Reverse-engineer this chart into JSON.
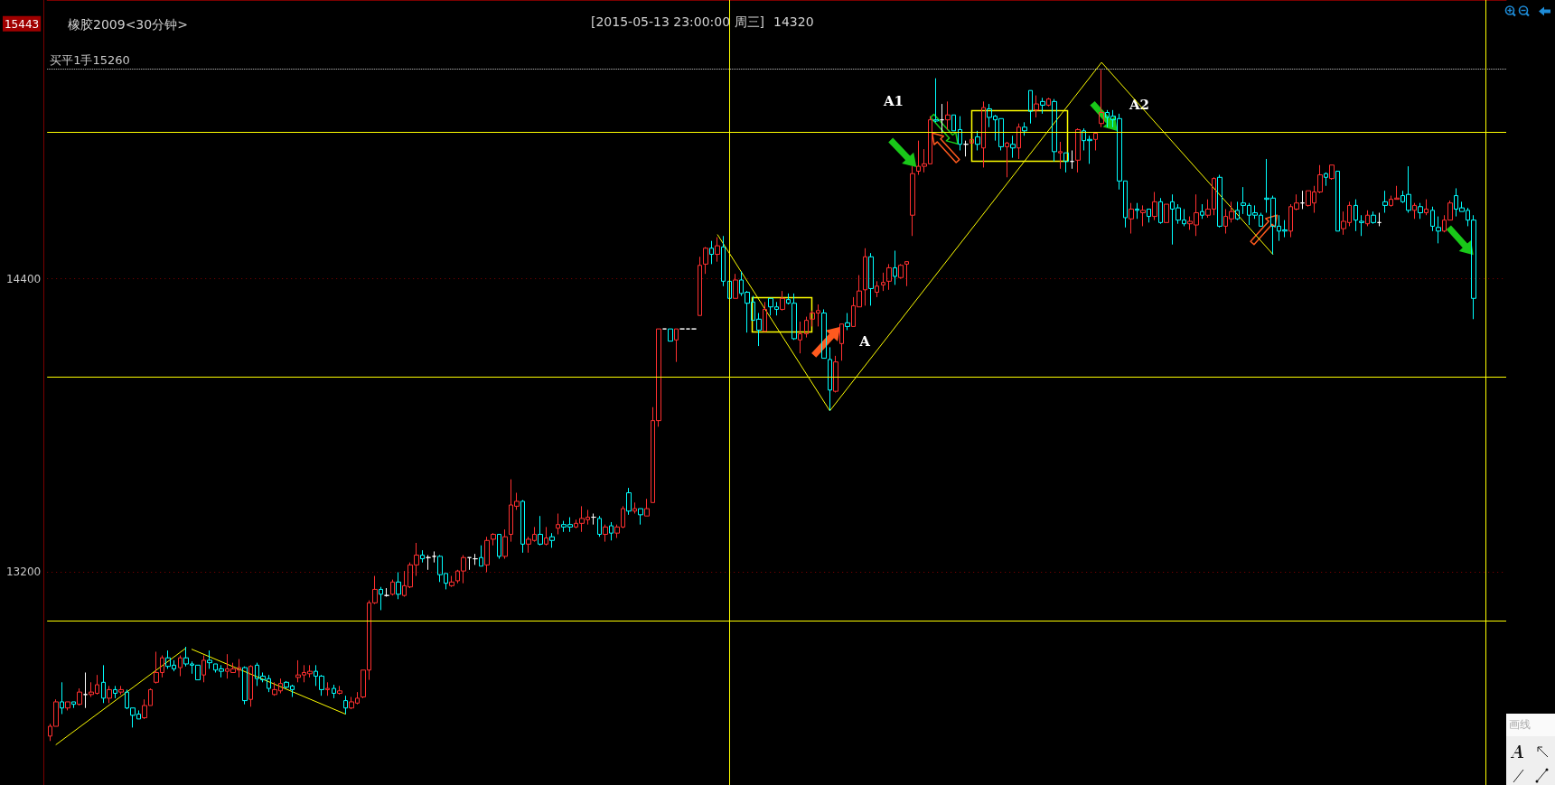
{
  "chart_data": {
    "type": "candlestick",
    "title": "橡胶2009<30分钟>",
    "annotations": [
      "[2015-05-13  23:00:00 周三]",
      "14320",
      "A1",
      "A2",
      "A",
      "画线"
    ],
    "categories": [
      null,
      null,
      null,
      null,
      null,
      null,
      null,
      null,
      null,
      null,
      null,
      null,
      null,
      null,
      null,
      null,
      null,
      null,
      null,
      null,
      null,
      null,
      null,
      null,
      null,
      null,
      null,
      null,
      null,
      null,
      null,
      null,
      null,
      null,
      null,
      null,
      null,
      null,
      null,
      null,
      null,
      null,
      null,
      null,
      null,
      null,
      null,
      null,
      null,
      null,
      null,
      null,
      null,
      null,
      null,
      null,
      null,
      null,
      null,
      null,
      null,
      null,
      null,
      null,
      null,
      null,
      null,
      null,
      null,
      null,
      null,
      null,
      null,
      null,
      null,
      null,
      null,
      null,
      null,
      null,
      null,
      null,
      null,
      null,
      null,
      null,
      null,
      null,
      null,
      null,
      null,
      null,
      null,
      null,
      null,
      null,
      null,
      null,
      null,
      null,
      null,
      null,
      null,
      null,
      null,
      null,
      null,
      null,
      null,
      null,
      null,
      null,
      null,
      null,
      null,
      null,
      null,
      null,
      null,
      null,
      null,
      null,
      null,
      null,
      null,
      null,
      null,
      null,
      null,
      null,
      null,
      null,
      null,
      null,
      null,
      null,
      null,
      null,
      null,
      null,
      null,
      null,
      null,
      null,
      null,
      null,
      null,
      null,
      null,
      null,
      null,
      null,
      null,
      null,
      null,
      null,
      null,
      null,
      null,
      null,
      null,
      null,
      null,
      null,
      null,
      null,
      null,
      null,
      null,
      null,
      null,
      null,
      null,
      null,
      null,
      null,
      null,
      null,
      null,
      null,
      null,
      null,
      null,
      null,
      null,
      null,
      null,
      null,
      null,
      null,
      null,
      null,
      null,
      null,
      null,
      null,
      null,
      null,
      null,
      null,
      null,
      null,
      null,
      null,
      null,
      null,
      null,
      null,
      null,
      null,
      null,
      null,
      null,
      null,
      null,
      null,
      null,
      null,
      null,
      null,
      null,
      null,
      null,
      null,
      null,
      null,
      null,
      null,
      null,
      null,
      null,
      null,
      null,
      null,
      null,
      null,
      null,
      null,
      null,
      null,
      null,
      null,
      null,
      null,
      null,
      null,
      null
    ],
    "ohlc": [
      [
        12530,
        12580,
        12510,
        12570
      ],
      [
        12570,
        12680,
        12570,
        12670
      ],
      [
        12670,
        12750,
        12620,
        12645
      ],
      [
        12645,
        12670,
        12635,
        12670
      ],
      [
        12670,
        12670,
        12645,
        12660
      ],
      [
        12660,
        12725,
        12655,
        12710
      ],
      [
        12700,
        12790,
        12645,
        12700
      ],
      [
        12700,
        12750,
        12690,
        12710
      ],
      [
        12705,
        12780,
        12700,
        12740
      ],
      [
        12750,
        12820,
        12665,
        12685
      ],
      [
        12685,
        12735,
        12665,
        12720
      ],
      [
        12720,
        12735,
        12685,
        12705
      ],
      [
        12710,
        12735,
        12700,
        12720
      ],
      [
        12710,
        12720,
        12640,
        12645
      ],
      [
        12645,
        12645,
        12565,
        12615
      ],
      [
        12620,
        12635,
        12600,
        12600
      ],
      [
        12605,
        12680,
        12600,
        12655
      ],
      [
        12655,
        12725,
        12655,
        12720
      ],
      [
        12750,
        12875,
        12745,
        12790
      ],
      [
        12790,
        12860,
        12770,
        12850
      ],
      [
        12850,
        12880,
        12805,
        12815
      ],
      [
        12820,
        12840,
        12795,
        12805
      ],
      [
        12810,
        12860,
        12775,
        12850
      ],
      [
        12850,
        12895,
        12815,
        12825
      ],
      [
        12825,
        12835,
        12785,
        12820
      ],
      [
        12820,
        12820,
        12760,
        12760
      ],
      [
        12780,
        12860,
        12750,
        12840
      ],
      [
        12840,
        12880,
        12805,
        12830
      ],
      [
        12825,
        12825,
        12790,
        12800
      ],
      [
        12805,
        12820,
        12770,
        12795
      ],
      [
        12795,
        12865,
        12765,
        12805
      ],
      [
        12790,
        12830,
        12790,
        12805
      ],
      [
        12800,
        12845,
        12770,
        12810
      ],
      [
        12810,
        12815,
        12660,
        12675
      ],
      [
        12680,
        12820,
        12650,
        12815
      ],
      [
        12820,
        12830,
        12735,
        12765
      ],
      [
        12775,
        12790,
        12750,
        12760
      ],
      [
        12765,
        12780,
        12710,
        12725
      ],
      [
        12700,
        12750,
        12695,
        12720
      ],
      [
        12715,
        12765,
        12705,
        12745
      ],
      [
        12750,
        12755,
        12725,
        12730
      ],
      [
        12735,
        12740,
        12690,
        12720
      ],
      [
        12770,
        12840,
        12750,
        12780
      ],
      [
        12780,
        12820,
        12750,
        12790
      ],
      [
        12785,
        12820,
        12770,
        12795
      ],
      [
        12795,
        12820,
        12735,
        12775
      ],
      [
        12775,
        12780,
        12695,
        12720
      ],
      [
        12720,
        12750,
        12695,
        12725
      ],
      [
        12725,
        12740,
        12685,
        12705
      ],
      [
        12705,
        12735,
        12700,
        12715
      ],
      [
        12675,
        12695,
        12620,
        12645
      ],
      [
        12645,
        12690,
        12640,
        12670
      ],
      [
        12665,
        12710,
        12660,
        12685
      ],
      [
        12690,
        12800,
        12685,
        12800
      ],
      [
        12800,
        13085,
        12760,
        13075
      ],
      [
        13075,
        13185,
        13070,
        13130
      ],
      [
        13130,
        13140,
        13045,
        13110
      ],
      [
        13105,
        13135,
        13100,
        13105
      ],
      [
        13110,
        13170,
        13105,
        13160
      ],
      [
        13160,
        13200,
        13090,
        13110
      ],
      [
        13105,
        13205,
        13100,
        13145
      ],
      [
        13140,
        13240,
        13135,
        13230
      ],
      [
        13230,
        13320,
        13185,
        13270
      ],
      [
        13270,
        13290,
        13240,
        13255
      ],
      [
        13260,
        13270,
        13210,
        13260
      ],
      [
        13265,
        13285,
        13240,
        13265
      ],
      [
        13265,
        13270,
        13160,
        13190
      ],
      [
        13195,
        13195,
        13130,
        13155
      ],
      [
        13145,
        13185,
        13140,
        13160
      ],
      [
        13165,
        13210,
        13155,
        13205
      ],
      [
        13205,
        13270,
        13155,
        13260
      ],
      [
        13260,
        13260,
        13210,
        13260
      ],
      [
        13255,
        13275,
        13230,
        13255
      ],
      [
        13260,
        13310,
        13225,
        13225
      ],
      [
        13230,
        13345,
        13200,
        13330
      ],
      [
        13335,
        13360,
        13310,
        13355
      ],
      [
        13355,
        13355,
        13255,
        13265
      ],
      [
        13265,
        13375,
        13255,
        13345
      ],
      [
        13355,
        13580,
        13325,
        13475
      ],
      [
        13470,
        13525,
        13455,
        13490
      ],
      [
        13490,
        13495,
        13280,
        13315
      ],
      [
        13315,
        13345,
        13280,
        13335
      ],
      [
        13330,
        13385,
        13325,
        13355
      ],
      [
        13355,
        13430,
        13310,
        13315
      ],
      [
        13315,
        13385,
        13310,
        13340
      ],
      [
        13345,
        13360,
        13300,
        13330
      ],
      [
        13380,
        13440,
        13355,
        13395
      ],
      [
        13395,
        13410,
        13365,
        13385
      ],
      [
        13395,
        13425,
        13365,
        13385
      ],
      [
        13385,
        13415,
        13380,
        13400
      ],
      [
        13400,
        13470,
        13365,
        13420
      ],
      [
        13415,
        13455,
        13395,
        13425
      ],
      [
        13425,
        13440,
        13395,
        13425
      ],
      [
        13420,
        13430,
        13345,
        13355
      ],
      [
        13355,
        13395,
        13325,
        13385
      ],
      [
        13390,
        13405,
        13330,
        13360
      ],
      [
        13360,
        13395,
        13340,
        13385
      ],
      [
        13385,
        13470,
        13380,
        13460
      ],
      [
        13525,
        13545,
        13435,
        13450
      ],
      [
        13450,
        13485,
        13440,
        13460
      ],
      [
        13460,
        13460,
        13395,
        13435
      ],
      [
        13430,
        13500,
        13430,
        13460
      ],
      [
        13485,
        13875,
        13485,
        13820
      ],
      [
        13820,
        14195,
        13795,
        14195
      ],
      [
        14195,
        14195,
        14195,
        14195
      ],
      [
        14195,
        14195,
        14145,
        14145
      ],
      [
        14150,
        14195,
        14060,
        14195
      ],
      [
        14195,
        14195,
        14195,
        14195
      ],
      [
        14195,
        14195,
        14195,
        14195
      ],
      [
        14195,
        14195,
        14195,
        14195
      ],
      [
        14250,
        14490,
        14250,
        14455
      ],
      [
        14460,
        14530,
        14420,
        14525
      ],
      [
        14525,
        14555,
        14460,
        14500
      ],
      [
        14500,
        14570,
        14470,
        14535
      ],
      [
        14530,
        14575,
        14370,
        14390
      ],
      [
        14390,
        14390,
        14320,
        14320
      ],
      [
        14320,
        14420,
        14320,
        14395
      ],
      [
        14395,
        14430,
        14330,
        14340
      ],
      [
        14345,
        14350,
        14180,
        14300
      ],
      [
        14305,
        14330,
        14230,
        14230
      ],
      [
        14235,
        14260,
        14125,
        14190
      ],
      [
        14185,
        14305,
        14185,
        14275
      ],
      [
        14320,
        14320,
        14250,
        14285
      ],
      [
        14285,
        14305,
        14250,
        14275
      ],
      [
        14275,
        14350,
        14270,
        14320
      ],
      [
        14315,
        14340,
        14295,
        14300
      ],
      [
        14300,
        14340,
        14150,
        14155
      ],
      [
        14150,
        14225,
        14095,
        14175
      ],
      [
        14175,
        14245,
        14160,
        14230
      ],
      [
        14235,
        14270,
        14205,
        14260
      ],
      [
        14260,
        14295,
        14205,
        14270
      ],
      [
        14260,
        14275,
        14075,
        14075
      ],
      [
        14070,
        14120,
        13860,
        13945
      ],
      [
        13940,
        14085,
        13935,
        14060
      ],
      [
        14135,
        14215,
        14065,
        14215
      ],
      [
        14220,
        14260,
        14190,
        14205
      ],
      [
        14205,
        14325,
        14205,
        14290
      ],
      [
        14285,
        14415,
        14285,
        14350
      ],
      [
        14355,
        14525,
        14290,
        14490
      ],
      [
        14490,
        14505,
        14290,
        14360
      ],
      [
        14345,
        14390,
        14325,
        14370
      ],
      [
        14375,
        14425,
        14350,
        14385
      ],
      [
        14390,
        14460,
        14355,
        14445
      ],
      [
        14445,
        14515,
        14375,
        14410
      ],
      [
        14405,
        14460,
        14400,
        14455
      ],
      [
        14460,
        14470,
        14370,
        14470
      ],
      [
        14660,
        14860,
        14575,
        14830
      ],
      [
        14840,
        14965,
        14825,
        14860
      ],
      [
        14860,
        14930,
        14835,
        14870
      ],
      [
        14870,
        15065,
        14870,
        15050
      ],
      [
        15050,
        15220,
        15040,
        15045
      ],
      [
        15050,
        15115,
        14995,
        15050
      ],
      [
        15050,
        15125,
        15010,
        15070
      ],
      [
        15070,
        15070,
        15005,
        15005
      ],
      [
        15010,
        15065,
        14925,
        14950
      ],
      [
        14950,
        14965,
        14900,
        14950
      ],
      [
        14955,
        14970,
        14955,
        14970
      ],
      [
        14980,
        15005,
        14925,
        14950
      ],
      [
        14935,
        15125,
        14855,
        15100
      ],
      [
        15095,
        15115,
        15020,
        15060
      ],
      [
        15065,
        15070,
        14965,
        15050
      ],
      [
        15055,
        15055,
        14925,
        14940
      ],
      [
        14940,
        14960,
        14815,
        14955
      ],
      [
        14950,
        14985,
        14895,
        14935
      ],
      [
        14935,
        15035,
        14890,
        15020
      ],
      [
        15020,
        15040,
        14985,
        15005
      ],
      [
        15170,
        15170,
        15035,
        15085
      ],
      [
        15090,
        15150,
        15060,
        15115
      ],
      [
        15125,
        15140,
        15075,
        15110
      ],
      [
        15110,
        15140,
        15105,
        15135
      ],
      [
        15125,
        15135,
        14880,
        14920
      ],
      [
        14915,
        14960,
        14850,
        14920
      ],
      [
        14915,
        14915,
        14835,
        14880
      ],
      [
        14880,
        14925,
        14850,
        14880
      ],
      [
        14885,
        15015,
        14835,
        15010
      ],
      [
        15005,
        15015,
        14925,
        14965
      ],
      [
        14970,
        14985,
        14870,
        14965
      ],
      [
        14970,
        14995,
        14925,
        14995
      ],
      [
        15035,
        15255,
        15020,
        15080
      ],
      [
        15080,
        15090,
        15020,
        15060
      ],
      [
        15065,
        15090,
        15020,
        15050
      ],
      [
        15055,
        15075,
        14765,
        14800
      ],
      [
        14800,
        14800,
        14610,
        14650
      ],
      [
        14645,
        14710,
        14585,
        14685
      ],
      [
        14685,
        14710,
        14645,
        14680
      ],
      [
        14670,
        14700,
        14615,
        14680
      ],
      [
        14685,
        14685,
        14630,
        14655
      ],
      [
        14655,
        14755,
        14640,
        14715
      ],
      [
        14715,
        14730,
        14625,
        14630
      ],
      [
        14630,
        14705,
        14630,
        14705
      ],
      [
        14715,
        14745,
        14540,
        14685
      ],
      [
        14690,
        14705,
        14625,
        14640
      ],
      [
        14640,
        14685,
        14615,
        14625
      ],
      [
        14625,
        14655,
        14600,
        14635
      ],
      [
        14620,
        14745,
        14575,
        14670
      ],
      [
        14675,
        14705,
        14645,
        14660
      ],
      [
        14660,
        14725,
        14650,
        14685
      ],
      [
        14685,
        14815,
        14660,
        14810
      ],
      [
        14815,
        14825,
        14610,
        14615
      ],
      [
        14615,
        14685,
        14585,
        14655
      ],
      [
        14645,
        14715,
        14630,
        14675
      ],
      [
        14680,
        14715,
        14640,
        14645
      ],
      [
        14710,
        14775,
        14665,
        14700
      ],
      [
        14700,
        14710,
        14620,
        14660
      ],
      [
        14670,
        14700,
        14645,
        14660
      ],
      [
        14660,
        14670,
        14615,
        14615
      ],
      [
        14730,
        14890,
        14670,
        14725
      ],
      [
        14730,
        14740,
        14500,
        14615
      ],
      [
        14615,
        14660,
        14555,
        14595
      ],
      [
        14600,
        14640,
        14570,
        14595
      ],
      [
        14595,
        14705,
        14570,
        14695
      ],
      [
        14685,
        14745,
        14680,
        14710
      ],
      [
        14710,
        14760,
        14685,
        14710
      ],
      [
        14700,
        14760,
        14695,
        14760
      ],
      [
        14710,
        14780,
        14670,
        14755
      ],
      [
        14755,
        14865,
        14750,
        14825
      ],
      [
        14830,
        14835,
        14780,
        14815
      ],
      [
        14810,
        14865,
        14805,
        14865
      ],
      [
        14840,
        14840,
        14595,
        14595
      ],
      [
        14605,
        14675,
        14580,
        14635
      ],
      [
        14630,
        14715,
        14615,
        14700
      ],
      [
        14700,
        14725,
        14595,
        14640
      ],
      [
        14635,
        14660,
        14575,
        14630
      ],
      [
        14625,
        14680,
        14615,
        14660
      ],
      [
        14660,
        14675,
        14625,
        14630
      ],
      [
        14630,
        14670,
        14615,
        14630
      ],
      [
        14715,
        14760,
        14670,
        14700
      ],
      [
        14700,
        14740,
        14695,
        14725
      ],
      [
        14725,
        14780,
        14725,
        14730
      ],
      [
        14740,
        14760,
        14710,
        14715
      ],
      [
        14745,
        14860,
        14670,
        14680
      ],
      [
        14680,
        14710,
        14645,
        14700
      ],
      [
        14695,
        14710,
        14645,
        14670
      ],
      [
        14670,
        14725,
        14660,
        14685
      ],
      [
        14680,
        14695,
        14595,
        14615
      ],
      [
        14610,
        14655,
        14545,
        14595
      ],
      [
        14595,
        14660,
        14590,
        14640
      ],
      [
        14640,
        14720,
        14640,
        14710
      ],
      [
        14740,
        14770,
        14655,
        14685
      ],
      [
        14690,
        14715,
        14675,
        14675
      ],
      [
        14680,
        14690,
        14615,
        14640
      ],
      [
        14640,
        14660,
        14235,
        14320
      ],
      null,
      null,
      null,
      null,
      null
    ],
    "colors": [
      "#ff3030",
      "#ff3030",
      "#00ffff",
      "#ff3030",
      "#00ffff",
      "#ff3030",
      "#ffffff",
      "#ff3030",
      "#ff3030",
      "#00ffff",
      "#ff3030",
      "#00ffff",
      "#ff3030",
      "#00ffff",
      "#00ffff",
      "#00ffff",
      "#ff3030",
      "#ff3030",
      "#ff3030",
      "#ff3030",
      "#00ffff",
      "#00ffff",
      "#ff3030",
      "#00ffff",
      "#00ffff",
      "#00ffff",
      "#ff3030",
      "#00ffff",
      "#00ffff",
      "#00ffff",
      "#ff3030",
      "#ff3030",
      "#ff3030",
      "#00ffff",
      "#ff3030",
      "#00ffff",
      "#00ffff",
      "#00ffff",
      "#ff3030",
      "#ff3030",
      "#00ffff",
      "#00ffff",
      "#ff3030",
      "#ff3030",
      "#ff3030",
      "#00ffff",
      "#00ffff",
      "#ff3030",
      "#00ffff",
      "#ff3030",
      "#00ffff",
      "#ff3030",
      "#ff3030",
      "#ff3030",
      "#ff3030",
      "#ff3030",
      "#00ffff",
      "#ffffff",
      "#ff3030",
      "#00ffff",
      "#ff3030",
      "#ff3030",
      "#ff3030",
      "#00ffff",
      "#ffffff",
      "#ffffff",
      "#00ffff",
      "#00ffff",
      "#ff3030",
      "#ff3030",
      "#ff3030",
      "#ffffff",
      "#ffffff",
      "#00ffff",
      "#ff3030",
      "#ff3030",
      "#00ffff",
      "#ff3030",
      "#ff3030",
      "#ff3030",
      "#00ffff",
      "#ff3030",
      "#ff3030",
      "#00ffff",
      "#ff3030",
      "#00ffff",
      "#ff3030",
      "#00ffff",
      "#00ffff",
      "#ff3030",
      "#ff3030",
      "#ff3030",
      "#ffffff",
      "#00ffff",
      "#ff3030",
      "#00ffff",
      "#ff3030",
      "#ff3030",
      "#00ffff",
      "#ff3030",
      "#00ffff",
      "#ff3030",
      "#ff3030",
      "#ff3030",
      "#ffffff",
      "#00ffff",
      "#ff3030",
      "#ffffff",
      "#ffffff",
      "#ffffff",
      "#ff3030",
      "#ff3030",
      "#00ffff",
      "#ff3030",
      "#00ffff",
      "#00ffff",
      "#ff3030",
      "#00ffff",
      "#00ffff",
      "#00ffff",
      "#00ffff",
      "#ff3030",
      "#00ffff",
      "#00ffff",
      "#ff3030",
      "#00ffff",
      "#00ffff",
      "#ff3030",
      "#ff3030",
      "#ff3030",
      "#ff3030",
      "#00ffff",
      "#00ffff",
      "#ff3030",
      "#ff3030",
      "#00ffff",
      "#ff3030",
      "#ff3030",
      "#ff3030",
      "#00ffff",
      "#ff3030",
      "#ff3030",
      "#ff3030",
      "#00ffff",
      "#ff3030",
      "#ff3030",
      "#ff3030",
      "#ff3030",
      "#ff3030",
      "#ff3030",
      "#00ffff",
      "#ffffff",
      "#ff3030",
      "#00ffff",
      "#00ffff",
      "#ffffff",
      "#ff3030",
      "#00ffff",
      "#ff3030",
      "#00ffff",
      "#00ffff",
      "#00ffff",
      "#ff3030",
      "#00ffff",
      "#ff3030",
      "#00ffff",
      "#00ffff",
      "#ff3030",
      "#00ffff",
      "#ff3030",
      "#00ffff",
      "#ff3030",
      "#00ffff",
      "#ffffff",
      "#ff3030",
      "#00ffff",
      "#00ffff",
      "#ff3030",
      "#ff3030",
      "#00ffff",
      "#00ffff",
      "#00ffff",
      "#00ffff",
      "#ff3030",
      "#00ffff",
      "#ff3030",
      "#00ffff",
      "#ff3030",
      "#00ffff",
      "#ff3030",
      "#00ffff",
      "#00ffff",
      "#00ffff",
      "#ff3030",
      "#ff3030",
      "#00ffff",
      "#ff3030",
      "#ff3030",
      "#00ffff",
      "#ff3030",
      "#ff3030",
      "#00ffff",
      "#00ffff",
      "#00ffff",
      "#00ffff",
      "#00ffff",
      "#00ffff",
      "#00ffff",
      "#00ffff",
      "#00ffff",
      "#ff3030",
      "#ff3030",
      "#ffffff",
      "#ff3030",
      "#ff3030",
      "#ff3030",
      "#00ffff",
      "#ff3030",
      "#00ffff",
      "#ff3030",
      "#ff3030",
      "#00ffff",
      "#00ffff",
      "#ff3030",
      "#00ffff",
      "#ffffff",
      "#00ffff",
      "#ff3030",
      "#ff3030",
      "#00ffff",
      "#00ffff",
      "#ff3030",
      "#00ffff",
      "#ff3030",
      "#00ffff",
      "#00ffff",
      "#ff3030",
      "#ff3030",
      "#00ffff",
      "#00ffff",
      "#00ffff",
      "#00ffff",
      null,
      null,
      null,
      null,
      null
    ],
    "series": [
      {
        "type": "line",
        "color": "#ffff00",
        "values": [
          null,
          12495,
          null,
          null,
          null,
          null,
          null,
          null,
          null,
          null,
          null,
          null,
          null,
          null,
          null,
          null,
          null,
          null,
          null,
          null,
          null,
          null,
          null,
          12890,
          null,
          null,
          null,
          null,
          null,
          null,
          null,
          null,
          null,
          null,
          null,
          null,
          null,
          null,
          null,
          null,
          null,
          null,
          null,
          null,
          null,
          null,
          null,
          null,
          null,
          null,
          null,
          null,
          null,
          null,
          null,
          null,
          null,
          null,
          null,
          null,
          null,
          null,
          null,
          null,
          null,
          null,
          null,
          null,
          null,
          null,
          null,
          null,
          null,
          null,
          null,
          null,
          null,
          null,
          null,
          null,
          null,
          null,
          null,
          null,
          null,
          null,
          null,
          null,
          null,
          null,
          null,
          null,
          null,
          null,
          null,
          null,
          null,
          null,
          null,
          null,
          null,
          null,
          null,
          null,
          null,
          null,
          null,
          null,
          null,
          null,
          null,
          null,
          null,
          null,
          null,
          null,
          null,
          null,
          null,
          null,
          null,
          null,
          null,
          null,
          null,
          null,
          null,
          null,
          null,
          null,
          null,
          null,
          null,
          null,
          null,
          null,
          null,
          null,
          null,
          null,
          null,
          null,
          null,
          null,
          null,
          null,
          null,
          null,
          null,
          null,
          null,
          null,
          null,
          null,
          null,
          null,
          null,
          null,
          null,
          null,
          null,
          null,
          null,
          null,
          null,
          null,
          null,
          null,
          null,
          null,
          null,
          null,
          null,
          null,
          null,
          null,
          null,
          null,
          null,
          null,
          null,
          null,
          null,
          null,
          null,
          null,
          null,
          null,
          null,
          null,
          null,
          null,
          null,
          null,
          null,
          null,
          null,
          null,
          null,
          null,
          null,
          null,
          null,
          null,
          null,
          null,
          null,
          null,
          null,
          null,
          null,
          null,
          null,
          null,
          null,
          null,
          null,
          null,
          null,
          null,
          null,
          null,
          null,
          null,
          null,
          null,
          null,
          null,
          null,
          null,
          null,
          null,
          null,
          null,
          null,
          null,
          null,
          null,
          null,
          null,
          null,
          null,
          null,
          null,
          null,
          null,
          null
        ]
      },
      {
        "type": "line",
        "color": "#ffff00",
        "values": [
          null,
          null,
          null,
          null,
          null,
          null,
          null,
          null,
          null,
          null,
          null,
          null,
          null,
          null,
          null,
          null,
          null,
          null,
          null,
          null,
          null,
          null,
          null,
          null,
          12885,
          null,
          null,
          null,
          null,
          null,
          null,
          null,
          null,
          null,
          null,
          null,
          null,
          null,
          null,
          null,
          null,
          null,
          null,
          null,
          null,
          null,
          null,
          null,
          null,
          null,
          12620,
          null,
          null,
          null,
          null,
          null,
          null,
          null,
          null,
          null,
          null,
          null,
          null,
          null,
          null,
          null,
          null,
          null,
          null,
          null,
          null,
          null,
          null,
          null,
          null,
          null,
          null,
          null,
          null,
          null,
          null,
          null,
          null,
          null,
          null,
          null,
          null,
          null,
          null,
          null,
          null,
          null,
          null,
          null,
          null,
          null,
          null,
          null,
          null,
          null,
          null,
          null,
          null,
          null,
          null,
          null,
          null,
          null,
          null,
          null,
          null,
          null,
          null,
          null,
          null,
          null,
          null,
          null,
          null,
          null,
          null,
          null,
          null,
          null,
          null,
          null,
          null,
          null,
          null,
          null,
          null,
          null,
          null,
          null,
          null,
          null,
          null,
          null,
          null,
          null,
          null,
          null,
          null,
          null,
          null,
          null,
          null,
          null,
          null,
          null,
          null,
          null,
          null,
          null,
          null,
          null,
          null,
          null,
          null,
          null,
          null,
          null,
          null,
          null,
          null,
          null,
          null,
          null,
          null,
          null,
          null,
          null,
          null,
          null,
          null,
          null,
          null,
          null,
          null,
          null,
          null,
          null,
          null,
          null,
          null,
          null,
          null,
          null,
          null,
          null,
          null,
          null,
          null,
          null,
          null,
          null,
          null,
          null,
          null,
          null,
          null,
          null,
          null,
          null,
          null,
          null,
          null,
          null,
          null,
          null,
          null,
          null,
          null,
          null,
          null,
          null,
          null,
          null,
          null,
          null,
          null,
          null,
          null,
          null,
          null,
          null,
          null,
          null,
          null,
          null,
          null,
          null,
          null,
          null,
          null,
          null,
          null,
          null,
          null,
          null,
          null,
          null,
          null,
          null,
          null,
          null,
          null
        ]
      },
      {
        "type": "line",
        "color": "#ffff00",
        "values": [
          null,
          null,
          null,
          null,
          null,
          null,
          null,
          null,
          null,
          null,
          null,
          null,
          null,
          null,
          null,
          null,
          null,
          null,
          null,
          null,
          null,
          null,
          null,
          null,
          null,
          null,
          null,
          null,
          null,
          null,
          null,
          null,
          null,
          null,
          null,
          null,
          null,
          null,
          null,
          null,
          null,
          null,
          null,
          null,
          null,
          null,
          null,
          null,
          null,
          null,
          null,
          null,
          null,
          null,
          null,
          null,
          null,
          null,
          null,
          null,
          null,
          null,
          null,
          null,
          null,
          null,
          null,
          null,
          null,
          null,
          null,
          null,
          null,
          null,
          null,
          null,
          null,
          null,
          null,
          null,
          null,
          null,
          null,
          null,
          null,
          null,
          null,
          null,
          null,
          null,
          null,
          null,
          null,
          null,
          null,
          null,
          null,
          null,
          null,
          null,
          null,
          null,
          null,
          null,
          null,
          null,
          null,
          null,
          null,
          null,
          null,
          null,
          null,
          14580,
          null,
          null,
          null,
          null,
          null,
          null,
          null,
          null,
          null,
          null,
          null,
          null,
          null,
          null,
          null,
          null,
          null,
          null,
          13860,
          null,
          null,
          null,
          null,
          null,
          null,
          null,
          null,
          null,
          null,
          null,
          null,
          null,
          null,
          null,
          null,
          null,
          null,
          null,
          null,
          null,
          null,
          null,
          null,
          null,
          null,
          null,
          null,
          null,
          null,
          null,
          null,
          null,
          null,
          null,
          null,
          null,
          null,
          null,
          null,
          null,
          null,
          null,
          null,
          null,
          15285,
          null,
          null,
          null,
          null,
          null,
          null,
          null,
          null,
          null,
          null,
          null,
          null,
          null,
          null,
          null,
          null,
          null,
          null,
          null,
          null,
          null,
          null,
          null,
          null,
          null,
          null,
          null,
          null,
          14500,
          null,
          null,
          null,
          null,
          null,
          null,
          null,
          null,
          null,
          null,
          null,
          null,
          null,
          null,
          null,
          null,
          null,
          null,
          null,
          null,
          null,
          null,
          null,
          null,
          null,
          null,
          null,
          null,
          null,
          null,
          null,
          null,
          null,
          null,
          null,
          null,
          null,
          null,
          null
        ]
      }
    ],
    "ylim": [
      12330,
      15540
    ],
    "yticks": [
      13200,
      14400,
      15443
    ],
    "grid": "y",
    "tick_labels": "y",
    "line_style": "solid",
    "ref_lines": [
      {
        "axis": "y",
        "value": 15000,
        "color": "#ffff00"
      },
      {
        "axis": "y",
        "value": 14000,
        "color": "#ffff00"
      },
      {
        "axis": "y",
        "value": 13000,
        "color": "#ffff00"
      },
      {
        "axis": "y",
        "value": 15260,
        "label": "买平1手15260",
        "color": "#c8c8c8",
        "line_style": "dotted"
      }
    ]
  }
}
